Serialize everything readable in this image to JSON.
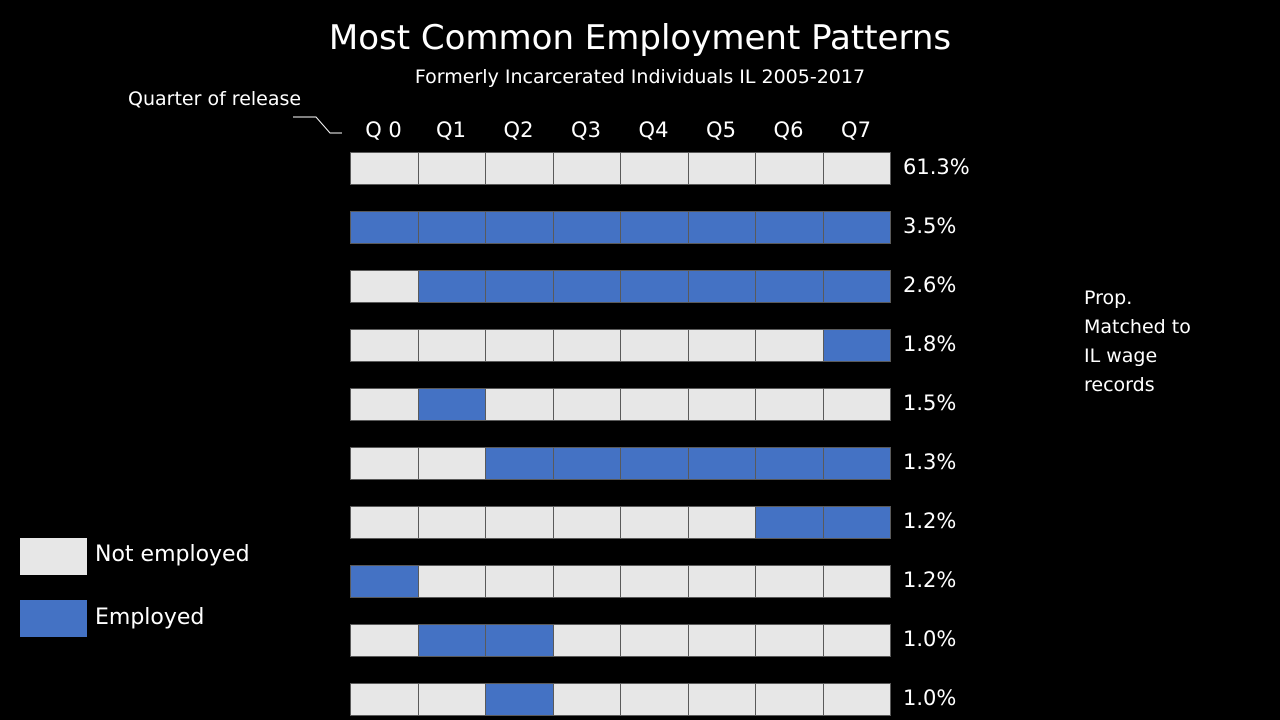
{
  "chart_data": {
    "type": "table",
    "title": "Most Common Employment Patterns",
    "subtitle": "Formerly Incarcerated Individuals IL 2005-2017",
    "row_axis_label": "Quarter of release",
    "quarters": [
      "Q 0",
      "Q1",
      "Q2",
      "Q3",
      "Q4",
      "Q5",
      "Q6",
      "Q7"
    ],
    "side_note": "Prop. Matched to IL wage records",
    "legend": [
      {
        "label": "Not employed",
        "color": "#e7e7e7",
        "state": 0
      },
      {
        "label": "Employed",
        "color": "#4472c4",
        "state": 1
      }
    ],
    "patterns": [
      {
        "cells": [
          0,
          0,
          0,
          0,
          0,
          0,
          0,
          0
        ],
        "proportion": "61.3%"
      },
      {
        "cells": [
          1,
          1,
          1,
          1,
          1,
          1,
          1,
          1
        ],
        "proportion": "3.5%"
      },
      {
        "cells": [
          0,
          1,
          1,
          1,
          1,
          1,
          1,
          1
        ],
        "proportion": "2.6%"
      },
      {
        "cells": [
          0,
          0,
          0,
          0,
          0,
          0,
          0,
          1
        ],
        "proportion": "1.8%"
      },
      {
        "cells": [
          0,
          1,
          0,
          0,
          0,
          0,
          0,
          0
        ],
        "proportion": "1.5%"
      },
      {
        "cells": [
          0,
          0,
          1,
          1,
          1,
          1,
          1,
          1
        ],
        "proportion": "1.3%"
      },
      {
        "cells": [
          0,
          0,
          0,
          0,
          0,
          0,
          1,
          1
        ],
        "proportion": "1.2%"
      },
      {
        "cells": [
          1,
          0,
          0,
          0,
          0,
          0,
          0,
          0
        ],
        "proportion": "1.2%"
      },
      {
        "cells": [
          0,
          1,
          1,
          0,
          0,
          0,
          0,
          0
        ],
        "proportion": "1.0%"
      },
      {
        "cells": [
          0,
          0,
          1,
          0,
          0,
          0,
          0,
          0
        ],
        "proportion": "1.0%"
      }
    ]
  }
}
